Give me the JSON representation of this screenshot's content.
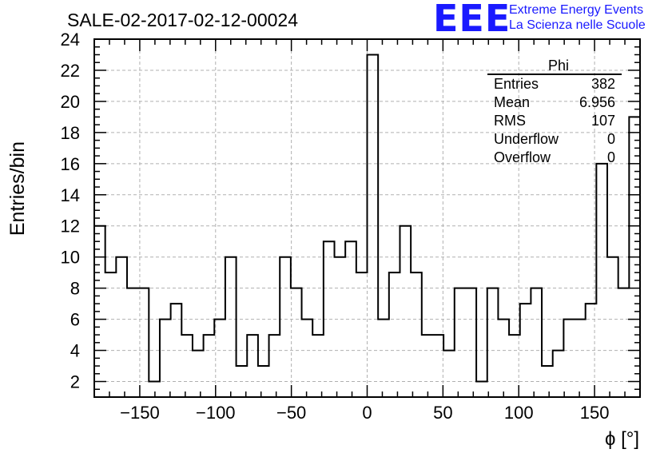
{
  "chart_data": {
    "type": "histogram",
    "title": "SALE-02-2017-02-12-00024",
    "xlabel": "ϕ [°]",
    "ylabel": "Entries/bin",
    "xlim": [
      -180,
      180
    ],
    "ylim": [
      1,
      24
    ],
    "bin_width": 7.2,
    "bin_contents": [
      12,
      9,
      10,
      8,
      8,
      2,
      6,
      7,
      5,
      4,
      5,
      6,
      10,
      3,
      5,
      3,
      5,
      10,
      8,
      6,
      5,
      11,
      10,
      11,
      9,
      23,
      6,
      9,
      12,
      9,
      5,
      5,
      4,
      8,
      8,
      2,
      8,
      6,
      5,
      7,
      8,
      3,
      4,
      6,
      6,
      7,
      16,
      10,
      8,
      19
    ],
    "x_ticks": [
      -150,
      -100,
      -50,
      0,
      50,
      100,
      150
    ],
    "x_tick_labels": [
      "−150",
      "−100",
      "−50",
      "0",
      "50",
      "100",
      "150"
    ],
    "y_ticks": [
      2,
      4,
      6,
      8,
      10,
      12,
      14,
      16,
      18,
      20,
      22,
      24
    ],
    "y_tick_labels": [
      "2",
      "4",
      "6",
      "8",
      "10",
      "12",
      "14",
      "16",
      "18",
      "20",
      "22",
      "24"
    ],
    "grid": true,
    "stats": {
      "name": "Phi",
      "rows": [
        {
          "label": "Entries",
          "value": "382"
        },
        {
          "label": "Mean",
          "value": "6.956"
        },
        {
          "label": "RMS",
          "value": "107"
        },
        {
          "label": "Underflow",
          "value": "0"
        },
        {
          "label": "Overflow",
          "value": "0"
        }
      ]
    }
  },
  "logo": {
    "mark": "EEE",
    "line1": "Extreme Energy Events",
    "line2": "La Scienza nelle Scuole"
  }
}
